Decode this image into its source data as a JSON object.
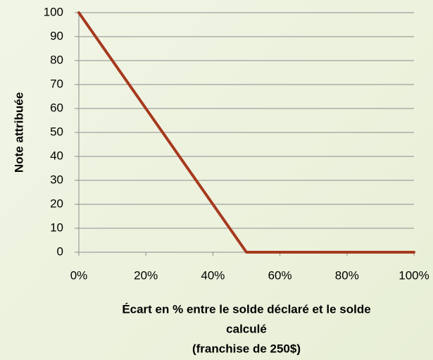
{
  "chart_data": {
    "type": "line",
    "x": [
      0,
      10,
      20,
      30,
      40,
      50,
      60,
      70,
      80,
      90,
      100
    ],
    "values": [
      100,
      80,
      60,
      40,
      20,
      0,
      0,
      0,
      0,
      0,
      0
    ],
    "color": "#a63a1f",
    "xlim": [
      0,
      100
    ],
    "xticks": [
      {
        "value": 0,
        "label": "0%"
      },
      {
        "value": 20,
        "label": "20%"
      },
      {
        "value": 40,
        "label": "40%"
      },
      {
        "value": 60,
        "label": "60%"
      },
      {
        "value": 80,
        "label": "80%"
      },
      {
        "value": 100,
        "label": "100%"
      }
    ],
    "ylim": [
      0,
      100
    ],
    "yticks": [
      0,
      10,
      20,
      30,
      40,
      50,
      60,
      70,
      80,
      90,
      100
    ],
    "grid": true,
    "ylabel": "Note attribuée",
    "xlabel": [
      "Écart en % entre le solde déclaré et le solde",
      "calculé",
      "(franchise de 250$)"
    ]
  }
}
